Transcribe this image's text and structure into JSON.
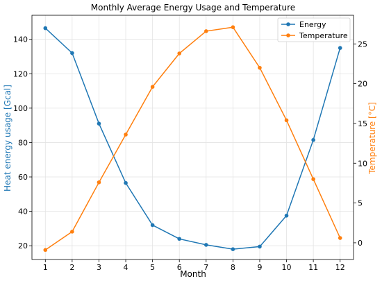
{
  "chart_data": {
    "type": "line",
    "title": "Monthly Average Energy Usage and Temperature",
    "xlabel": "Month",
    "ylabel_left": "Heat energy usage [Gcal]",
    "ylabel_right": "Temperature [°C]",
    "x": [
      1,
      2,
      3,
      4,
      5,
      6,
      7,
      8,
      9,
      10,
      11,
      12
    ],
    "xticks": [
      "1",
      "2",
      "3",
      "4",
      "5",
      "6",
      "7",
      "8",
      "9",
      "10",
      "11",
      "12"
    ],
    "xlim": [
      0.5,
      12.5
    ],
    "ylim_left": [
      12,
      154
    ],
    "ylim_right": [
      -2.1,
      28.6
    ],
    "yticks_left": [
      20,
      40,
      60,
      80,
      100,
      120,
      140
    ],
    "yticks_right": [
      0,
      5,
      10,
      15,
      20,
      25
    ],
    "grid": true,
    "legend_position": "upper right",
    "series": [
      {
        "name": "Energy",
        "axis": "left",
        "color": "#1f77b4",
        "values": [
          146.5,
          132,
          91,
          56.5,
          32,
          24,
          20.5,
          18,
          19.5,
          37.5,
          81.5,
          135
        ]
      },
      {
        "name": "Temperature",
        "axis": "right",
        "color": "#ff7f0e",
        "values": [
          -0.9,
          1.4,
          7.6,
          13.6,
          19.6,
          23.8,
          26.6,
          27.1,
          22,
          15.4,
          8,
          0.6
        ]
      }
    ]
  }
}
